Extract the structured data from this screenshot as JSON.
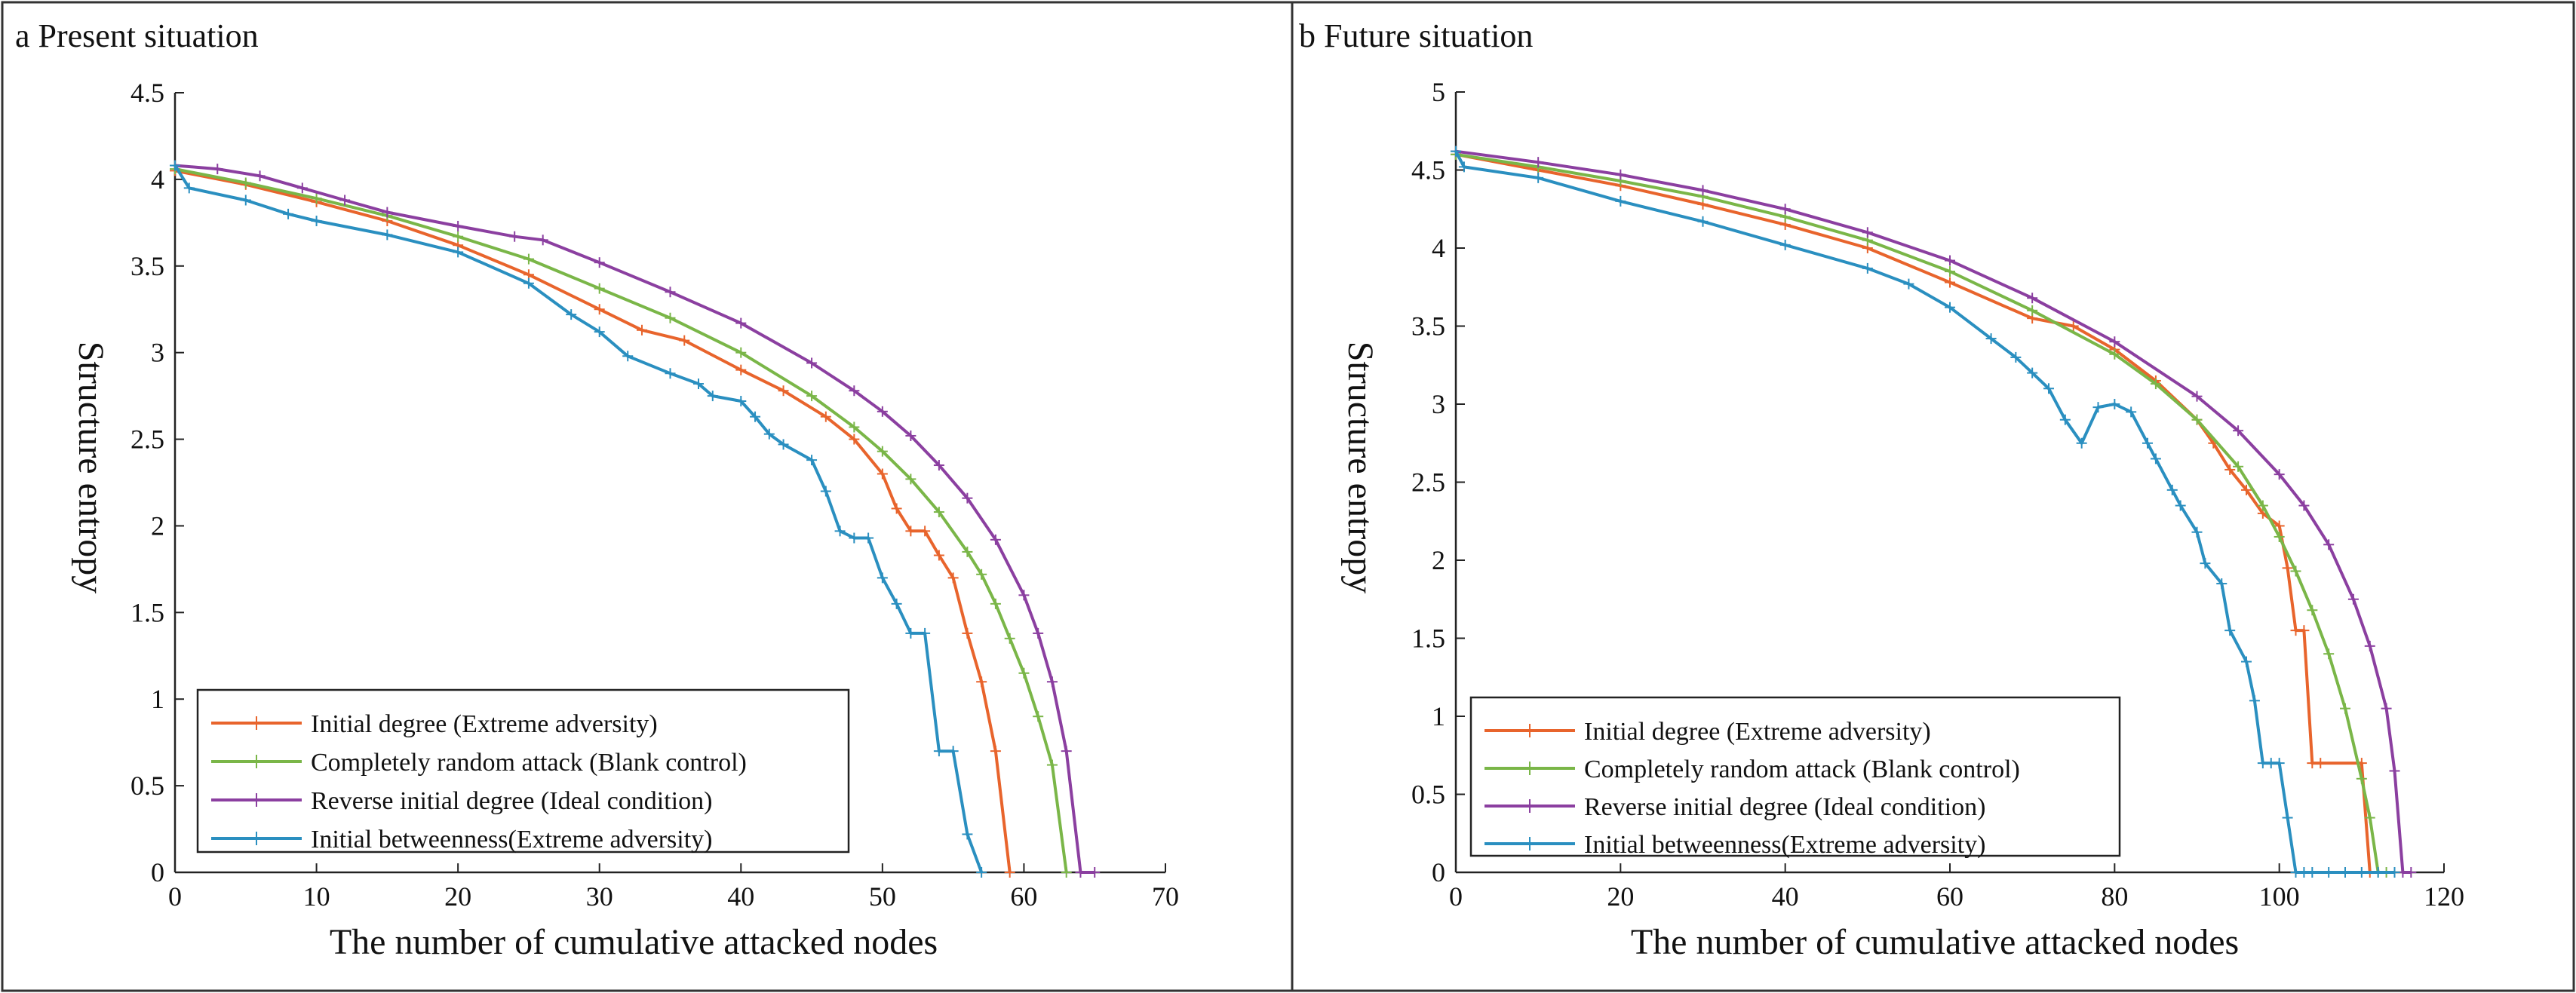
{
  "chart_data": [
    {
      "type": "line",
      "panel_label": "a Present situation",
      "xlabel": "The number of cumulative attacked nodes",
      "ylabel": "Structure entropy",
      "xlim": [
        0,
        70
      ],
      "ylim": [
        0,
        4.5
      ],
      "xticks": [
        "0",
        "10",
        "20",
        "30",
        "40",
        "50",
        "60",
        "70"
      ],
      "yticks": [
        "0",
        "0.5",
        "1",
        "1.5",
        "2",
        "2.5",
        "3",
        "3.5",
        "4",
        "4.5"
      ],
      "grid": false,
      "legend_position": "bottom-left",
      "series": [
        {
          "name": "Initial degree (Extreme adversity)",
          "color": "#e8642c",
          "x": [
            0,
            5,
            10,
            15,
            20,
            25,
            30,
            33,
            36,
            40,
            43,
            46,
            48,
            50,
            51,
            52,
            53,
            54,
            55,
            56,
            57,
            58,
            59
          ],
          "y": [
            4.05,
            3.97,
            3.87,
            3.76,
            3.62,
            3.45,
            3.25,
            3.13,
            3.07,
            2.9,
            2.78,
            2.63,
            2.5,
            2.3,
            2.1,
            1.97,
            1.97,
            1.83,
            1.7,
            1.38,
            1.1,
            0.7,
            0
          ]
        },
        {
          "name": "Completely random attack (Blank control)",
          "color": "#7ab648",
          "x": [
            0,
            5,
            10,
            15,
            20,
            25,
            30,
            35,
            40,
            45,
            48,
            50,
            52,
            54,
            56,
            57,
            58,
            59,
            60,
            61,
            62,
            63
          ],
          "y": [
            4.06,
            3.98,
            3.89,
            3.79,
            3.67,
            3.54,
            3.37,
            3.2,
            3.0,
            2.75,
            2.57,
            2.43,
            2.27,
            2.08,
            1.85,
            1.72,
            1.55,
            1.35,
            1.15,
            0.9,
            0.62,
            0
          ]
        },
        {
          "name": "Reverse initial degree (Ideal condition)",
          "color": "#8b3fa0",
          "x": [
            0,
            3,
            6,
            9,
            12,
            15,
            20,
            24,
            26,
            30,
            35,
            40,
            45,
            48,
            50,
            52,
            54,
            56,
            58,
            60,
            61,
            62,
            63,
            64,
            65
          ],
          "y": [
            4.08,
            4.06,
            4.02,
            3.95,
            3.88,
            3.81,
            3.73,
            3.67,
            3.65,
            3.52,
            3.35,
            3.17,
            2.94,
            2.78,
            2.66,
            2.52,
            2.35,
            2.16,
            1.92,
            1.6,
            1.38,
            1.1,
            0.7,
            0,
            0
          ]
        },
        {
          "name": "Initial betweenness(Extreme adversity)",
          "color": "#2a8fc0",
          "x": [
            0,
            1,
            5,
            8,
            10,
            15,
            20,
            25,
            28,
            30,
            32,
            35,
            37,
            38,
            40,
            41,
            42,
            43,
            45,
            46,
            47,
            48,
            49,
            50,
            51,
            52,
            53,
            54,
            55,
            56,
            57
          ],
          "y": [
            4.08,
            3.95,
            3.88,
            3.8,
            3.76,
            3.68,
            3.58,
            3.4,
            3.22,
            3.12,
            2.98,
            2.88,
            2.82,
            2.75,
            2.72,
            2.63,
            2.53,
            2.47,
            2.38,
            2.2,
            1.97,
            1.93,
            1.93,
            1.7,
            1.55,
            1.38,
            1.38,
            0.7,
            0.7,
            0.22,
            0
          ]
        }
      ]
    },
    {
      "type": "line",
      "panel_label": "b Future situation",
      "xlabel": "The number of cumulative attacked nodes",
      "ylabel": "Structure entropy",
      "xlim": [
        0,
        120
      ],
      "ylim": [
        0,
        5
      ],
      "xticks": [
        "0",
        "20",
        "40",
        "60",
        "80",
        "100",
        "120"
      ],
      "yticks": [
        "0",
        "0.5",
        "1",
        "1.5",
        "2",
        "2.5",
        "3",
        "3.5",
        "4",
        "4.5",
        "5"
      ],
      "grid": false,
      "legend_position": "bottom-left",
      "series": [
        {
          "name": "Initial degree (Extreme adversity)",
          "color": "#e8642c",
          "x": [
            0,
            10,
            20,
            30,
            40,
            50,
            60,
            70,
            75,
            80,
            85,
            90,
            92,
            94,
            96,
            98,
            100,
            101,
            102,
            103,
            104,
            105,
            110,
            111
          ],
          "y": [
            4.6,
            4.5,
            4.4,
            4.28,
            4.15,
            4.0,
            3.78,
            3.55,
            3.5,
            3.35,
            3.15,
            2.9,
            2.75,
            2.58,
            2.45,
            2.3,
            2.22,
            1.95,
            1.55,
            1.55,
            0.7,
            0.7,
            0.7,
            0
          ]
        },
        {
          "name": "Completely random attack (Blank control)",
          "color": "#7ab648",
          "x": [
            0,
            10,
            20,
            30,
            40,
            50,
            60,
            70,
            80,
            85,
            90,
            95,
            98,
            100,
            102,
            104,
            106,
            108,
            110,
            111,
            112,
            113
          ],
          "y": [
            4.6,
            4.52,
            4.43,
            4.33,
            4.2,
            4.05,
            3.85,
            3.6,
            3.32,
            3.13,
            2.9,
            2.6,
            2.35,
            2.15,
            1.93,
            1.68,
            1.4,
            1.05,
            0.6,
            0.35,
            0,
            0
          ]
        },
        {
          "name": "Reverse initial degree (Ideal condition)",
          "color": "#8b3fa0",
          "x": [
            0,
            10,
            20,
            30,
            40,
            50,
            60,
            70,
            80,
            90,
            95,
            100,
            103,
            106,
            109,
            111,
            113,
            114,
            115,
            116
          ],
          "y": [
            4.62,
            4.55,
            4.47,
            4.37,
            4.25,
            4.1,
            3.92,
            3.68,
            3.4,
            3.05,
            2.83,
            2.55,
            2.35,
            2.1,
            1.75,
            1.45,
            1.05,
            0.65,
            0,
            0
          ]
        },
        {
          "name": "Initial betweenness(Extreme adversity)",
          "color": "#2a8fc0",
          "x": [
            0,
            1,
            10,
            20,
            30,
            40,
            50,
            55,
            60,
            65,
            68,
            70,
            72,
            74,
            76,
            78,
            80,
            82,
            84,
            85,
            87,
            88,
            90,
            91,
            93,
            94,
            96,
            97,
            98,
            99,
            100,
            101,
            102,
            103,
            104,
            106,
            108,
            110,
            112,
            114
          ],
          "y": [
            4.62,
            4.52,
            4.45,
            4.3,
            4.17,
            4.02,
            3.87,
            3.77,
            3.62,
            3.42,
            3.3,
            3.2,
            3.1,
            2.9,
            2.75,
            2.98,
            3.0,
            2.95,
            2.75,
            2.65,
            2.45,
            2.35,
            2.18,
            1.98,
            1.85,
            1.55,
            1.35,
            1.1,
            0.7,
            0.7,
            0.7,
            0.35,
            0,
            0,
            0,
            0,
            0,
            0,
            0,
            0
          ]
        }
      ]
    }
  ]
}
